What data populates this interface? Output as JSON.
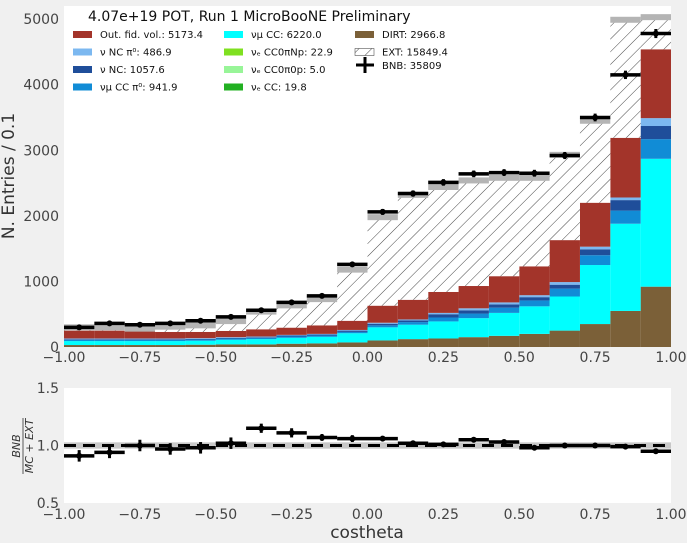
{
  "title": "4.07e+19 POT, Run 1 MicroBooNE Preliminary",
  "xlabel": "costheta",
  "chart_data": [
    {
      "type": "bar",
      "stacked": true,
      "ylabel": "N. Entries  / 0.1",
      "xlim": [
        -1.0,
        1.0
      ],
      "ylim": [
        0,
        5200
      ],
      "xticks": [
        "−1.00",
        "−0.75",
        "−0.50",
        "−0.25",
        "0.00",
        "0.25",
        "0.50",
        "0.75",
        "1.00"
      ],
      "yticks": [
        "0",
        "1000",
        "2000",
        "3000",
        "4000",
        "5000"
      ],
      "bin_edges": [
        -1.0,
        -0.9,
        -0.8,
        -0.7,
        -0.6,
        -0.5,
        -0.4,
        -0.3,
        -0.2,
        -0.1,
        0.0,
        0.1,
        0.2,
        0.3,
        0.4,
        0.5,
        0.6,
        0.7,
        0.8,
        0.9,
        1.0
      ],
      "series": [
        {
          "name": "DIRT: 2966.8",
          "color": "#7b6038",
          "values": [
            30,
            30,
            30,
            30,
            35,
            40,
            40,
            50,
            55,
            70,
            100,
            120,
            130,
            150,
            170,
            200,
            250,
            350,
            550,
            920
          ]
        },
        {
          "name": "νₑ CC: 19.8",
          "color": "#22b022",
          "values": [
            0,
            0,
            0,
            0,
            0,
            0,
            0,
            0,
            0,
            0,
            0,
            0,
            0,
            0,
            0,
            0,
            0,
            0,
            0,
            0
          ]
        },
        {
          "name": "νₑ CC0π0p: 5.0",
          "color": "#98f598",
          "values": [
            0,
            0,
            0,
            0,
            0,
            0,
            0,
            0,
            0,
            0,
            0,
            0,
            0,
            0,
            0,
            0,
            0,
            0,
            0,
            0
          ]
        },
        {
          "name": "νₑ CC0πNp: 22.9",
          "color": "#7fe020",
          "values": [
            0,
            0,
            0,
            0,
            0,
            0,
            0,
            0,
            0,
            0,
            0,
            0,
            0,
            0,
            0,
            0,
            0,
            0,
            0,
            0
          ]
        },
        {
          "name": "νμ CC: 6220.0",
          "color": "#00ffff",
          "values": [
            60,
            60,
            60,
            60,
            60,
            70,
            80,
            90,
            100,
            140,
            200,
            220,
            260,
            290,
            350,
            420,
            520,
            900,
            1330,
            1950
          ]
        },
        {
          "name": "νμ CC π⁰: 941.9",
          "color": "#118cd6",
          "values": [
            20,
            20,
            20,
            20,
            20,
            20,
            20,
            20,
            20,
            20,
            30,
            40,
            60,
            70,
            80,
            90,
            120,
            150,
            200,
            300
          ]
        },
        {
          "name": "ν NC: 1057.6",
          "color": "#1f4e9a",
          "values": [
            10,
            10,
            10,
            10,
            10,
            10,
            10,
            15,
            15,
            20,
            25,
            25,
            50,
            50,
            50,
            50,
            60,
            90,
            160,
            200
          ]
        },
        {
          "name": "ν NC π⁰: 486.9",
          "color": "#7cb8f0",
          "values": [
            10,
            10,
            10,
            10,
            10,
            10,
            10,
            10,
            10,
            10,
            15,
            15,
            20,
            30,
            30,
            30,
            40,
            40,
            40,
            120
          ]
        },
        {
          "name": "Out. fid. vol.: 5173.4",
          "color": "#a3342a",
          "values": [
            120,
            120,
            110,
            100,
            95,
            95,
            110,
            110,
            130,
            140,
            260,
            300,
            320,
            340,
            400,
            440,
            640,
            670,
            910,
            1050
          ]
        },
        {
          "name": "EXT: 15849.4",
          "color": "#ffffff",
          "hatch": true,
          "values": [
            50,
            50,
            40,
            80,
            100,
            150,
            270,
            340,
            400,
            780,
            1350,
            1600,
            1600,
            1610,
            1500,
            1350,
            1300,
            1250,
            1800,
            490
          ]
        }
      ],
      "data": {
        "name": "BNB: 35809",
        "values": [
          300,
          360,
          340,
          360,
          400,
          460,
          560,
          680,
          780,
          1260,
          2060,
          2340,
          2510,
          2640,
          2660,
          2650,
          2920,
          3500,
          4150,
          4780
        ],
        "errors": [
          18,
          19,
          18,
          19,
          20,
          22,
          24,
          26,
          28,
          36,
          45,
          48,
          50,
          51,
          52,
          52,
          54,
          59,
          64,
          69
        ]
      },
      "mc_error_color": "#b4b4b4"
    },
    {
      "type": "scatter",
      "ylabel": "BNB / (MC + EXT)",
      "ylabel_num": "BNB",
      "ylabel_den": "MC + EXT",
      "xlim": [
        -1.0,
        1.0
      ],
      "ylim": [
        0.5,
        1.5
      ],
      "xticks": [
        "−1.00",
        "−0.75",
        "−0.50",
        "−0.25",
        "0.00",
        "0.25",
        "0.50",
        "0.75",
        "1.00"
      ],
      "yticks": [
        "0.5",
        "1.0",
        "1.5"
      ],
      "reference_line": 1.0,
      "values": [
        0.91,
        0.94,
        1.0,
        0.97,
        0.98,
        1.02,
        1.15,
        1.11,
        1.07,
        1.06,
        1.06,
        1.02,
        1.01,
        1.05,
        1.03,
        0.98,
        1.0,
        1.0,
        0.99,
        0.95
      ],
      "errors": [
        0.05,
        0.05,
        0.05,
        0.05,
        0.05,
        0.05,
        0.04,
        0.04,
        0.03,
        0.03,
        0.02,
        0.02,
        0.02,
        0.02,
        0.02,
        0.02,
        0.02,
        0.02,
        0.02,
        0.02
      ],
      "mc_errors": [
        0.01,
        0.01,
        0.01,
        0.01,
        0.01,
        0.01,
        0.01,
        0.01,
        0.01,
        0.01,
        0.01,
        0.01,
        0.01,
        0.01,
        0.01,
        0.01,
        0.01,
        0.01,
        0.01,
        0.01
      ]
    }
  ]
}
